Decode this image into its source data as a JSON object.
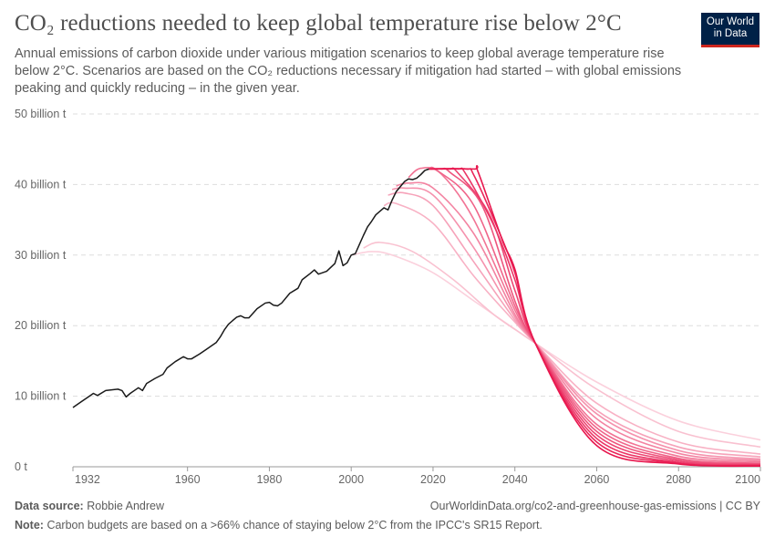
{
  "header": {
    "title": "CO₂ reductions needed to keep global temperature rise below 2°C",
    "subtitle": "Annual emissions of carbon dioxide under various mitigation scenarios to keep global average temperature rise below 2°C. Scenarios are based on the CO₂ reductions necessary if mitigation had started – with global emissions peaking and quickly reducing – in the given year.",
    "logo": "Our World in Data"
  },
  "footer": {
    "source_label": "Data source:",
    "source": "Robbie Andrew",
    "url": "OurWorldinData.org/co2-and-greenhouse-gas-emissions | CC BY",
    "note_label": "Note:",
    "note": "Carbon budgets are based on a >66% chance of staying below 2°C from the IPCC's SR15 Report."
  },
  "colors": {
    "historical": "#1a1a1a",
    "scenario_light": "#fbd0dc",
    "scenario_dark": "#e8174e",
    "logo_bg": "#002147",
    "logo_accent": "#ce261e"
  },
  "chart_data": {
    "type": "line",
    "xlim": [
      1932,
      2100
    ],
    "ylim": [
      0,
      50
    ],
    "grid": "horizontal-dashed",
    "legend": "none",
    "x_ticks": [
      "1932",
      "1960",
      "1980",
      "2000",
      "2020",
      "2040",
      "2060",
      "2080",
      "2100"
    ],
    "x_tick_values": [
      1932,
      1960,
      1980,
      2000,
      2020,
      2040,
      2060,
      2080,
      2100
    ],
    "y_ticks": [
      "0 t",
      "10 billion t",
      "20 billion t",
      "30 billion t",
      "40 billion t",
      "50 billion t"
    ],
    "y_tick_values": [
      0,
      10,
      20,
      30,
      40,
      50
    ],
    "historical": {
      "x": [
        1932,
        1934,
        1936,
        1937,
        1938,
        1940,
        1943,
        1944,
        1945,
        1946,
        1948,
        1949,
        1950,
        1952,
        1954,
        1955,
        1957,
        1959,
        1960,
        1961,
        1963,
        1965,
        1967,
        1968,
        1969,
        1970,
        1972,
        1973,
        1974,
        1975,
        1977,
        1979,
        1980,
        1981,
        1982,
        1983,
        1985,
        1987,
        1988,
        1990,
        1991,
        1992,
        1994,
        1996,
        1997,
        1998,
        1999,
        2000,
        2001,
        2002,
        2003,
        2004,
        2005,
        2006,
        2007,
        2008,
        2009,
        2010,
        2011,
        2012,
        2013,
        2014,
        2015,
        2016,
        2017,
        2018,
        2019
      ],
      "y": [
        8.4,
        9.2,
        10.0,
        10.4,
        10.1,
        10.8,
        11.0,
        10.8,
        9.9,
        10.4,
        11.2,
        10.8,
        11.8,
        12.5,
        13.1,
        14.0,
        14.9,
        15.6,
        15.3,
        15.3,
        16.0,
        16.8,
        17.6,
        18.4,
        19.4,
        20.2,
        21.2,
        21.4,
        21.1,
        21.1,
        22.4,
        23.2,
        23.3,
        22.9,
        22.8,
        23.2,
        24.6,
        25.3,
        26.5,
        27.4,
        27.9,
        27.3,
        27.7,
        28.8,
        30.6,
        28.5,
        28.9,
        30.0,
        30.2,
        31.5,
        32.8,
        34.0,
        34.8,
        35.7,
        36.2,
        36.7,
        36.4,
        37.8,
        39.0,
        39.7,
        40.4,
        40.8,
        40.7,
        40.9,
        41.4,
        42.0,
        42.2
      ]
    },
    "scenarios": [
      {
        "x": [
          2000,
          2005,
          2010,
          2020,
          2030,
          2040,
          2045,
          2060,
          2080,
          2100
        ],
        "y": [
          30.0,
          30.5,
          30.0,
          27.5,
          23.5,
          19.5,
          17.5,
          12.0,
          6.5,
          3.8
        ]
      },
      {
        "x": [
          2003,
          2007,
          2015,
          2025,
          2035,
          2045,
          2060,
          2080,
          2100
        ],
        "y": [
          31.0,
          31.8,
          30.5,
          26.5,
          21.5,
          17.5,
          11.0,
          5.0,
          2.8
        ]
      },
      {
        "x": [
          2008,
          2011,
          2020,
          2030,
          2040,
          2045,
          2060,
          2080,
          2100
        ],
        "y": [
          37.0,
          37.3,
          34.5,
          27.0,
          20.5,
          17.5,
          9.0,
          3.5,
          1.8
        ]
      },
      {
        "x": [
          2009,
          2013,
          2020,
          2030,
          2040,
          2045,
          2060,
          2080,
          2100
        ],
        "y": [
          38.5,
          38.8,
          37.0,
          29.0,
          20.8,
          17.5,
          8.0,
          2.8,
          1.4
        ]
      },
      {
        "x": [
          2010,
          2013,
          2020,
          2030,
          2040,
          2045,
          2060,
          2080,
          2100
        ],
        "y": [
          39.3,
          39.5,
          38.5,
          31.0,
          21.2,
          17.5,
          7.5,
          2.3,
          1.1
        ]
      },
      {
        "x": [
          2011,
          2014,
          2020,
          2030,
          2040,
          2045,
          2060,
          2080,
          2100
        ],
        "y": [
          39.8,
          40.2,
          39.5,
          33.0,
          21.6,
          17.5,
          6.8,
          1.9,
          0.9
        ]
      },
      {
        "x": [
          2014,
          2017,
          2022,
          2030,
          2040,
          2045,
          2060,
          2080,
          2100
        ],
        "y": [
          41.0,
          42.3,
          41.5,
          35.0,
          22.2,
          17.5,
          6.0,
          1.5,
          0.7
        ]
      },
      {
        "x": [
          2019,
          2021,
          2030,
          2040,
          2045,
          2060,
          2080,
          2100
        ],
        "y": [
          42.2,
          42.0,
          37.0,
          22.8,
          17.5,
          5.5,
          1.2,
          0.5
        ]
      },
      {
        "x": [
          2019,
          2022,
          2024,
          2032,
          2040,
          2045,
          2060,
          2080,
          2100
        ],
        "y": [
          42.2,
          42.2,
          41.8,
          37.0,
          23.5,
          17.5,
          5.0,
          1.0,
          0.4
        ]
      },
      {
        "x": [
          2019,
          2024,
          2026,
          2034,
          2040,
          2045,
          2060,
          2080,
          2100
        ],
        "y": [
          42.2,
          42.2,
          41.7,
          35.5,
          25.0,
          17.5,
          4.5,
          0.8,
          0.3
        ]
      },
      {
        "x": [
          2019,
          2026,
          2028,
          2035,
          2040,
          2045,
          2060,
          2080,
          2100
        ],
        "y": [
          42.2,
          42.2,
          41.5,
          34.0,
          26.5,
          17.5,
          4.0,
          0.6,
          0.2
        ]
      },
      {
        "x": [
          2019,
          2028,
          2030,
          2036,
          2040,
          2045,
          2060,
          2080,
          2100
        ],
        "y": [
          42.2,
          42.2,
          41.3,
          33.5,
          27.5,
          17.5,
          3.5,
          0.5,
          0.2
        ]
      },
      {
        "x": [
          2019,
          2030,
          2031,
          2037,
          2040,
          2045,
          2060,
          2080,
          2100
        ],
        "y": [
          42.2,
          42.2,
          41.8,
          32.0,
          28.0,
          17.5,
          3.0,
          0.4,
          0.1
        ]
      }
    ]
  }
}
